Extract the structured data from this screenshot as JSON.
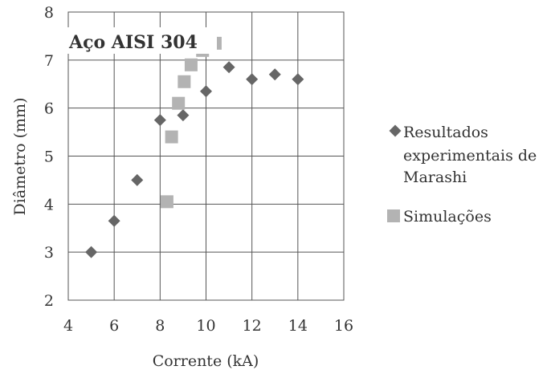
{
  "chart_data": {
    "type": "scatter",
    "title": "Aço AISI 304",
    "xlabel": "Corrente (kA)",
    "ylabel": "Diâmetro (mm)",
    "xlim": [
      4,
      16
    ],
    "ylim": [
      2,
      8
    ],
    "x_ticks": [
      4,
      6,
      8,
      10,
      12,
      14,
      16
    ],
    "y_ticks": [
      2,
      3,
      4,
      5,
      6,
      7,
      8
    ],
    "grid": true,
    "legend_position": "right",
    "series": [
      {
        "name": "Resultados experimentais de Marashi",
        "legend_lines": [
          "Resultados",
          "experimentais de",
          "Marashi"
        ],
        "marker": "diamond",
        "color": "#666666",
        "points": [
          {
            "x": 5,
            "y": 3.0
          },
          {
            "x": 6,
            "y": 3.65
          },
          {
            "x": 7,
            "y": 4.5
          },
          {
            "x": 8,
            "y": 5.75
          },
          {
            "x": 9,
            "y": 5.85
          },
          {
            "x": 10,
            "y": 6.35
          },
          {
            "x": 11,
            "y": 6.85
          },
          {
            "x": 12,
            "y": 6.6
          },
          {
            "x": 13,
            "y": 6.7
          },
          {
            "x": 14,
            "y": 6.6
          }
        ]
      },
      {
        "name": "Simulações",
        "legend_lines": [
          "Simulações"
        ],
        "marker": "square",
        "color": "#b3b3b3",
        "points": [
          {
            "x": 8.3,
            "y": 4.05
          },
          {
            "x": 8.5,
            "y": 5.4
          },
          {
            "x": 8.8,
            "y": 6.1
          },
          {
            "x": 9.05,
            "y": 6.55
          },
          {
            "x": 9.35,
            "y": 6.9
          },
          {
            "x": 9.85,
            "y": 7.2
          },
          {
            "x": 10.4,
            "y": 7.35
          }
        ]
      }
    ]
  }
}
